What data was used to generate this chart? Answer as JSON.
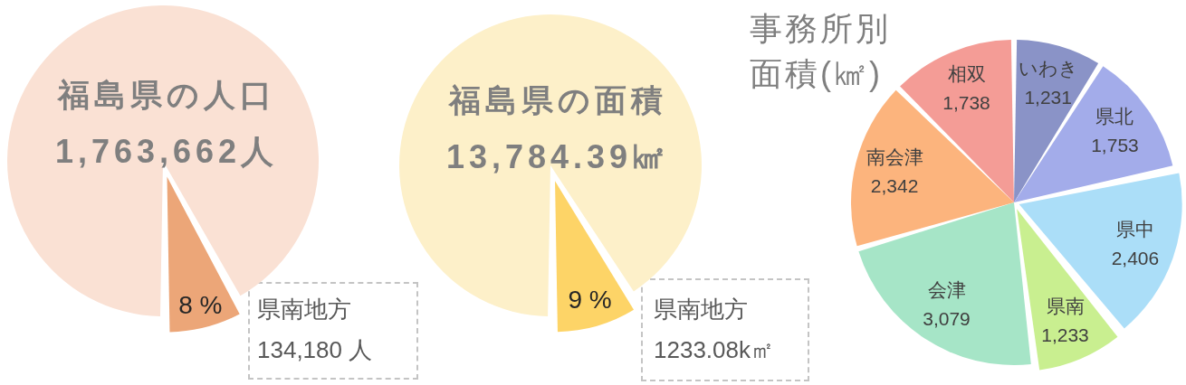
{
  "chart_data": [
    {
      "type": "pie",
      "title": "福島県の人口",
      "subtitle": "1,763,662人",
      "categories": [
        null,
        "県南地方"
      ],
      "values": [
        92,
        8
      ],
      "colors": [
        "#fae1d4",
        "#eca678"
      ],
      "value_labels": [
        null,
        "8 %"
      ],
      "annotations": [
        "134,180 人"
      ]
    },
    {
      "type": "pie",
      "title": "福島県の面積",
      "subtitle": "13,784.39㎢",
      "categories": [
        null,
        "県南地方"
      ],
      "values": [
        91,
        9
      ],
      "colors": [
        "#fdf0c9",
        "#fdd467"
      ],
      "value_labels": [
        null,
        "9 %"
      ],
      "annotations": [
        "1233.08k㎡"
      ]
    },
    {
      "type": "pie",
      "title": "事務所別面積(㎢)",
      "categories": [
        "いわき",
        "県北",
        "県中",
        "県南",
        "会津",
        "南会津",
        "相双"
      ],
      "values": [
        1231,
        1753,
        2406,
        1233,
        3079,
        2342,
        1738
      ],
      "colors": [
        "#8a93c7",
        "#a3acea",
        "#abdef8",
        "#c9ef90",
        "#a6e5c7",
        "#fcb47d",
        "#f49c96"
      ],
      "value_labels": [
        "1,231",
        "1,753",
        "2,406",
        "1,233",
        "3,079",
        "2,342",
        "1,738"
      ]
    }
  ]
}
